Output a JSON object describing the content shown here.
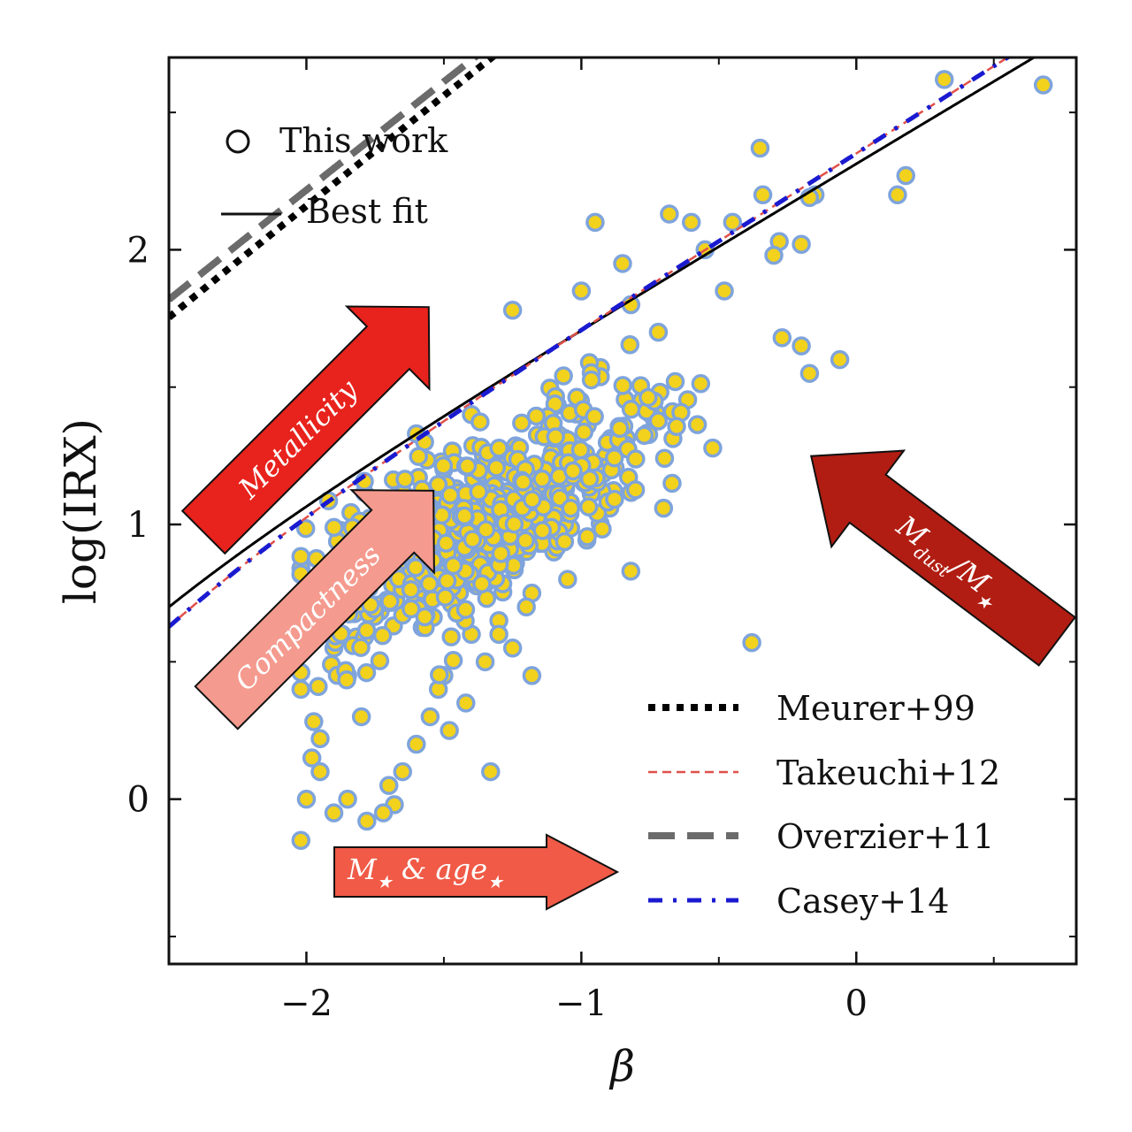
{
  "chart_data": {
    "type": "scatter",
    "title": "",
    "xlabel": "β",
    "ylabel": "log(IRX)",
    "xlim": [
      -2.5,
      0.8
    ],
    "ylim": [
      -0.6,
      2.7
    ],
    "xticks": [
      -2,
      -1,
      0
    ],
    "xtick_labels": [
      "−2",
      "−1",
      "0"
    ],
    "yticks": [
      0,
      1,
      2
    ],
    "ytick_labels": [
      "0",
      "1",
      "2"
    ],
    "scatter_label": "This work",
    "scatter_style": {
      "face": "#f2d21c",
      "edge": "#7fa4dc"
    },
    "scatter_seed": 7,
    "scatter_n": 700,
    "scatter_points": [
      [
        -0.38,
        0.57
      ],
      [
        0.32,
        2.62
      ],
      [
        0.68,
        2.6
      ],
      [
        -0.35,
        2.37
      ],
      [
        -0.34,
        2.2
      ],
      [
        -0.15,
        2.2
      ],
      [
        -0.17,
        2.19
      ],
      [
        0.15,
        2.2
      ],
      [
        0.18,
        2.27
      ],
      [
        -0.2,
        2.02
      ],
      [
        -0.28,
        2.03
      ],
      [
        -0.3,
        1.98
      ],
      [
        -1.25,
        1.78
      ],
      [
        -0.27,
        1.68
      ],
      [
        -0.06,
        1.6
      ],
      [
        -0.17,
        1.55
      ],
      [
        -0.2,
        1.65
      ],
      [
        -0.48,
        1.85
      ],
      [
        -1.0,
        1.85
      ],
      [
        -0.85,
        1.95
      ],
      [
        -0.6,
        2.1
      ],
      [
        -0.45,
        2.1
      ],
      [
        -0.55,
        2.0
      ],
      [
        -0.95,
        2.1
      ],
      [
        -0.68,
        2.13
      ],
      [
        -0.82,
        1.8
      ],
      [
        -0.72,
        1.7
      ],
      [
        -1.6,
        1.33
      ],
      [
        -1.57,
        1.3
      ],
      [
        -1.4,
        1.4
      ],
      [
        -1.36,
        1.22
      ],
      [
        -1.5,
        1.2
      ],
      [
        -1.58,
        1.12
      ],
      [
        -0.67,
        1.15
      ],
      [
        -0.82,
        0.83
      ],
      [
        -1.1,
        0.9
      ],
      [
        -1.18,
        0.75
      ],
      [
        -1.2,
        0.7
      ],
      [
        -1.05,
        0.8
      ],
      [
        -1.3,
        0.65
      ],
      [
        -1.4,
        0.6
      ],
      [
        -1.35,
        0.5
      ],
      [
        -1.5,
        0.45
      ],
      [
        -1.52,
        0.4
      ],
      [
        -1.55,
        0.3
      ],
      [
        -1.6,
        0.2
      ],
      [
        -1.65,
        0.1
      ],
      [
        -1.68,
        -0.02
      ],
      [
        -1.7,
        0.05
      ],
      [
        -1.72,
        -0.05
      ],
      [
        -1.85,
        0.0
      ],
      [
        -1.9,
        -0.05
      ],
      [
        -1.95,
        0.1
      ],
      [
        -2.0,
        0.0
      ],
      [
        -2.02,
        -0.15
      ],
      [
        -1.78,
        -0.08
      ],
      [
        -1.8,
        0.3
      ],
      [
        -1.85,
        0.45
      ],
      [
        -1.87,
        0.6
      ],
      [
        -1.9,
        0.55
      ],
      [
        -1.95,
        0.22
      ],
      [
        -1.98,
        0.15
      ],
      [
        -2.02,
        0.4
      ],
      [
        -1.33,
        0.1
      ],
      [
        -1.3,
        0.6
      ],
      [
        -1.18,
        0.45
      ],
      [
        -1.25,
        0.55
      ],
      [
        -1.48,
        0.25
      ],
      [
        -1.42,
        0.35
      ]
    ],
    "series": [
      {
        "name": "Best fit",
        "color": "#000000",
        "style": "solid",
        "width": 3,
        "A": 1.49,
        "B": 3.5
      },
      {
        "name": "Meurer+99",
        "color": "#000000",
        "style": "dotted",
        "width": 8,
        "A": 1.99,
        "B": 4.43
      },
      {
        "name": "Takeuchi+12",
        "color": "#e0504a",
        "style": "dashed",
        "width": 2.5,
        "A": 1.58,
        "B": 3.36
      },
      {
        "name": "Overzier+11",
        "color": "#6b6b6b",
        "style": "longdash",
        "width": 8,
        "A": 1.96,
        "B": 4.54
      },
      {
        "name": "Casey+14",
        "color": "#1a1ad0",
        "style": "dashdot",
        "width": 5,
        "A": 1.58,
        "B": 3.36
      }
    ],
    "annotations": [
      {
        "text": "Metallicity",
        "color": "#e8221c"
      },
      {
        "text": "Compactness",
        "color": "#f59a8e"
      },
      {
        "text": "M",
        "sub": "dust",
        "text2": "/M",
        "sub2": "★",
        "color": "#b11d12"
      },
      {
        "text": "M",
        "sub": "★",
        "text2": " & age",
        "sub2": "★",
        "color": "#f05a46"
      }
    ],
    "legend_upper": [
      {
        "label": "This work"
      },
      {
        "label": "Best fit"
      }
    ],
    "legend_lower": [
      {
        "label": "Meurer+99"
      },
      {
        "label": "Takeuchi+12"
      },
      {
        "label": "Overzier+11"
      },
      {
        "label": "Casey+14"
      }
    ]
  }
}
